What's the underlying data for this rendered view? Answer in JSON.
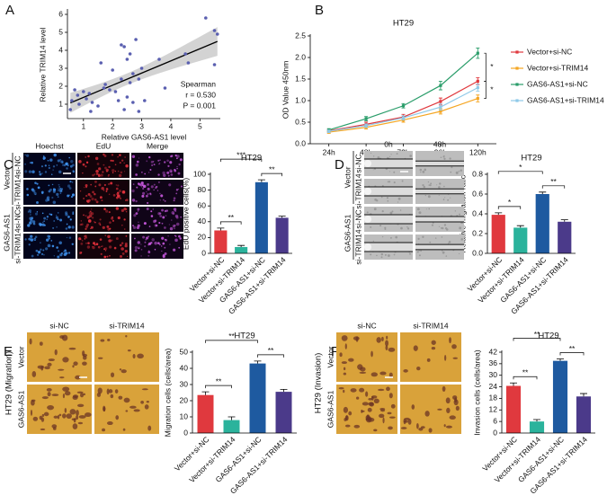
{
  "chart_data": [
    {
      "type": "scatter",
      "panel": "A",
      "xlabel": "Relative GAS6-AS1 level",
      "ylabel": "Relative TRIM14 level",
      "x": [
        0.55,
        0.6,
        0.7,
        0.8,
        0.85,
        1.0,
        1.1,
        1.2,
        1.25,
        1.3,
        1.5,
        1.6,
        1.7,
        1.75,
        1.9,
        2.0,
        2.1,
        2.2,
        2.3,
        2.3,
        2.4,
        2.4,
        2.5,
        2.5,
        2.6,
        2.6,
        2.7,
        2.7,
        2.8,
        2.9,
        2.9,
        3.0,
        3.1,
        3.6,
        3.8,
        4.5,
        4.6,
        5.2,
        5.5,
        5.6,
        5.5
      ],
      "values": [
        0.7,
        1.2,
        1.8,
        1.5,
        1.0,
        1.7,
        1.3,
        1.6,
        0.6,
        1.1,
        0.9,
        3.3,
        1.9,
        2.1,
        1.8,
        2.9,
        1.7,
        1.2,
        2.4,
        4.3,
        4.2,
        0.7,
        3.5,
        1.4,
        3.8,
        2.2,
        1.1,
        2.7,
        4.6,
        2.4,
        0.6,
        3.0,
        1.2,
        3.5,
        1.9,
        3.8,
        3.3,
        5.8,
        5.1,
        4.9,
        3.2
      ],
      "color": "#5a5fb0",
      "fit": true,
      "xlim": [
        0.45,
        5.7
      ],
      "ylim": [
        0.2,
        6.2
      ],
      "xticks": [
        1,
        2,
        3,
        4,
        5
      ],
      "yticks": [
        1,
        2,
        3,
        4,
        5,
        6
      ],
      "annotations": [
        "Spearman",
        "r = 0.530",
        "P = 0.001"
      ]
    },
    {
      "type": "line",
      "panel": "B",
      "title": "HT29",
      "ylabel": "OD Value 450nm",
      "categories": [
        "24h",
        "48h",
        "72h",
        "96h",
        "120h"
      ],
      "series": [
        {
          "name": "Vector+si-NC",
          "color": "#e0393e",
          "values": [
            0.3,
            0.45,
            0.62,
            0.98,
            1.45
          ],
          "errors": [
            0.03,
            0.05,
            0.06,
            0.08,
            0.08
          ]
        },
        {
          "name": "Vector+si-TRIM14",
          "color": "#f5a623",
          "values": [
            0.27,
            0.38,
            0.55,
            0.75,
            1.05
          ],
          "errors": [
            0.03,
            0.04,
            0.05,
            0.06,
            0.08
          ]
        },
        {
          "name": "GAS6-AS1+si-NC",
          "color": "#2a9d6a",
          "values": [
            0.32,
            0.58,
            0.88,
            1.35,
            2.1
          ],
          "errors": [
            0.03,
            0.05,
            0.05,
            0.1,
            0.12
          ]
        },
        {
          "name": "GAS6-AS1+si-TRIM14",
          "color": "#8ec9e8",
          "values": [
            0.29,
            0.42,
            0.6,
            0.85,
            1.3
          ],
          "errors": [
            0.03,
            0.04,
            0.05,
            0.07,
            0.08
          ]
        }
      ],
      "ylim": [
        0,
        2.5
      ],
      "yticks": [
        {
          "value": 0,
          "label": "0.0"
        },
        {
          "value": 0.5,
          "label": "0.5"
        },
        {
          "value": 1,
          "label": "1.0"
        },
        {
          "value": 1.5,
          "label": "1.5"
        },
        {
          "value": 2,
          "label": "2.0"
        },
        {
          "value": 2.5,
          "label": "2.5"
        }
      ],
      "annotations": [
        "*",
        "*"
      ]
    },
    {
      "type": "bar",
      "panel": "C",
      "title": "HT29",
      "ylabel": "EdU positive cells(%)",
      "categories": [
        "Vector+si-NC",
        "Vector+si-TRIM14",
        "GAS6-AS1+si-NC",
        "GAS6-AS1+si-TRIM14"
      ],
      "values": [
        29,
        8,
        90,
        45
      ],
      "errors": [
        3,
        2,
        3,
        2
      ],
      "colors": [
        "#e0393e",
        "#2bb39c",
        "#1e5aa0",
        "#4b3a8a"
      ],
      "ylim": [
        0,
        100
      ],
      "yticks": [
        0,
        20,
        40,
        60,
        80,
        100
      ],
      "significance": [
        "**",
        "***",
        "**"
      ]
    },
    {
      "type": "bar",
      "panel": "D",
      "title": "HT29",
      "ylabel": "Relative migration ratio",
      "categories": [
        "Vector+si-NC",
        "Vector+si-TRIM14",
        "GAS6-AS1+si-NC",
        "GAS6-AS1+si-TRIM14"
      ],
      "values": [
        0.39,
        0.26,
        0.6,
        0.32
      ],
      "errors": [
        0.02,
        0.02,
        0.02,
        0.02
      ],
      "colors": [
        "#e0393e",
        "#2bb39c",
        "#1e5aa0",
        "#4b3a8a"
      ],
      "ylim": [
        0,
        0.8
      ],
      "yticks": [
        {
          "value": 0,
          "label": "0.0"
        },
        {
          "value": 0.2,
          "label": "0.2"
        },
        {
          "value": 0.4,
          "label": "0.4"
        },
        {
          "value": 0.6,
          "label": "0.6"
        },
        {
          "value": 0.8,
          "label": "0.8"
        }
      ],
      "significance": [
        "*",
        "*",
        "**"
      ]
    },
    {
      "type": "bar",
      "panel": "E",
      "title": "HT29",
      "ylabel": "Migration cells (cells/area)",
      "categories": [
        "Vector+si-NC",
        "Vector+si-TRIM14",
        "GAS6-AS1+si-NC",
        "GAS6-AS1+si-TRIM14"
      ],
      "values": [
        23.5,
        8,
        43,
        25.5
      ],
      "errors": [
        2,
        2,
        1.5,
        1.5
      ],
      "colors": [
        "#e0393e",
        "#2bb39c",
        "#1e5aa0",
        "#4b3a8a"
      ],
      "ylim": [
        0,
        50
      ],
      "yticks": [
        0,
        10,
        20,
        30,
        40,
        50
      ],
      "significance": [
        "**",
        "**",
        "**"
      ]
    },
    {
      "type": "bar",
      "panel": "F",
      "title": "HT29",
      "ylabel": "Invasion cells (cells/area)",
      "categories": [
        "Vector+si-NC",
        "Vector+si-TRIM14",
        "GAS6-AS1+si-NC",
        "GAS6-AS1+si-TRIM14"
      ],
      "values": [
        24.5,
        6,
        37.5,
        19
      ],
      "errors": [
        1.5,
        1,
        1,
        1.5
      ],
      "colors": [
        "#e0393e",
        "#2bb39c",
        "#1e5aa0",
        "#4b3a8a"
      ],
      "ylim": [
        0,
        42
      ],
      "yticks": [
        0,
        6,
        12,
        18,
        24,
        30,
        36,
        42
      ],
      "significance": [
        "**",
        "**",
        "**"
      ]
    }
  ],
  "micrographs": [
    {
      "columns": [
        "Hoechst",
        "EdU",
        "Merge"
      ],
      "rows": [
        "si-NC",
        "si-TRIM14",
        "si-NC",
        "si-TRIM14"
      ],
      "groups": [
        "Vector",
        "GAS6-AS1"
      ]
    },
    {
      "columns": [
        "0h",
        "48h"
      ],
      "rows": [
        "si-NC",
        "si-TRIM14",
        "si-NC",
        "si-TRIM14"
      ],
      "groups": [
        "Vector",
        "GAS6-AS1"
      ]
    },
    {
      "columns": [
        "si-NC",
        "si-TRIM14"
      ],
      "rows": [
        "Vector",
        "GAS6-AS1"
      ],
      "side": "HT29 (Migration)"
    },
    {
      "columns": [
        "si-NC",
        "si-TRIM14"
      ],
      "rows": [
        "Vector",
        "GAS6-AS1"
      ],
      "side": "HT29 (Invasion)"
    }
  ]
}
